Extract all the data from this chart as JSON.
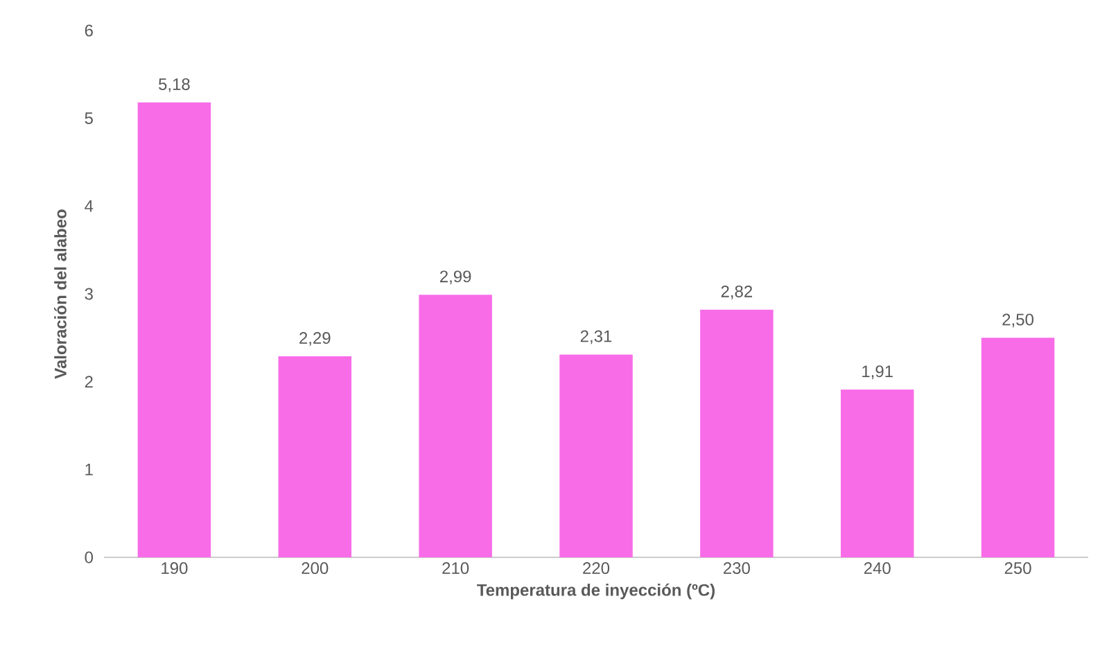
{
  "chart_data": {
    "type": "bar",
    "xlabel": "Temperatura de inyección (ºC)",
    "ylabel": "Valoración del alabeo",
    "categories": [
      "190",
      "200",
      "210",
      "220",
      "230",
      "240",
      "250"
    ],
    "values": [
      5.18,
      2.29,
      2.99,
      2.31,
      2.82,
      1.91,
      2.5
    ],
    "value_labels": [
      "5,18",
      "2,29",
      "2,99",
      "2,31",
      "2,82",
      "1,91",
      "2,50"
    ],
    "color": "#f86ce8",
    "ylim": [
      0,
      6
    ],
    "yticks": [
      0,
      1,
      2,
      3,
      4,
      5,
      6
    ]
  }
}
